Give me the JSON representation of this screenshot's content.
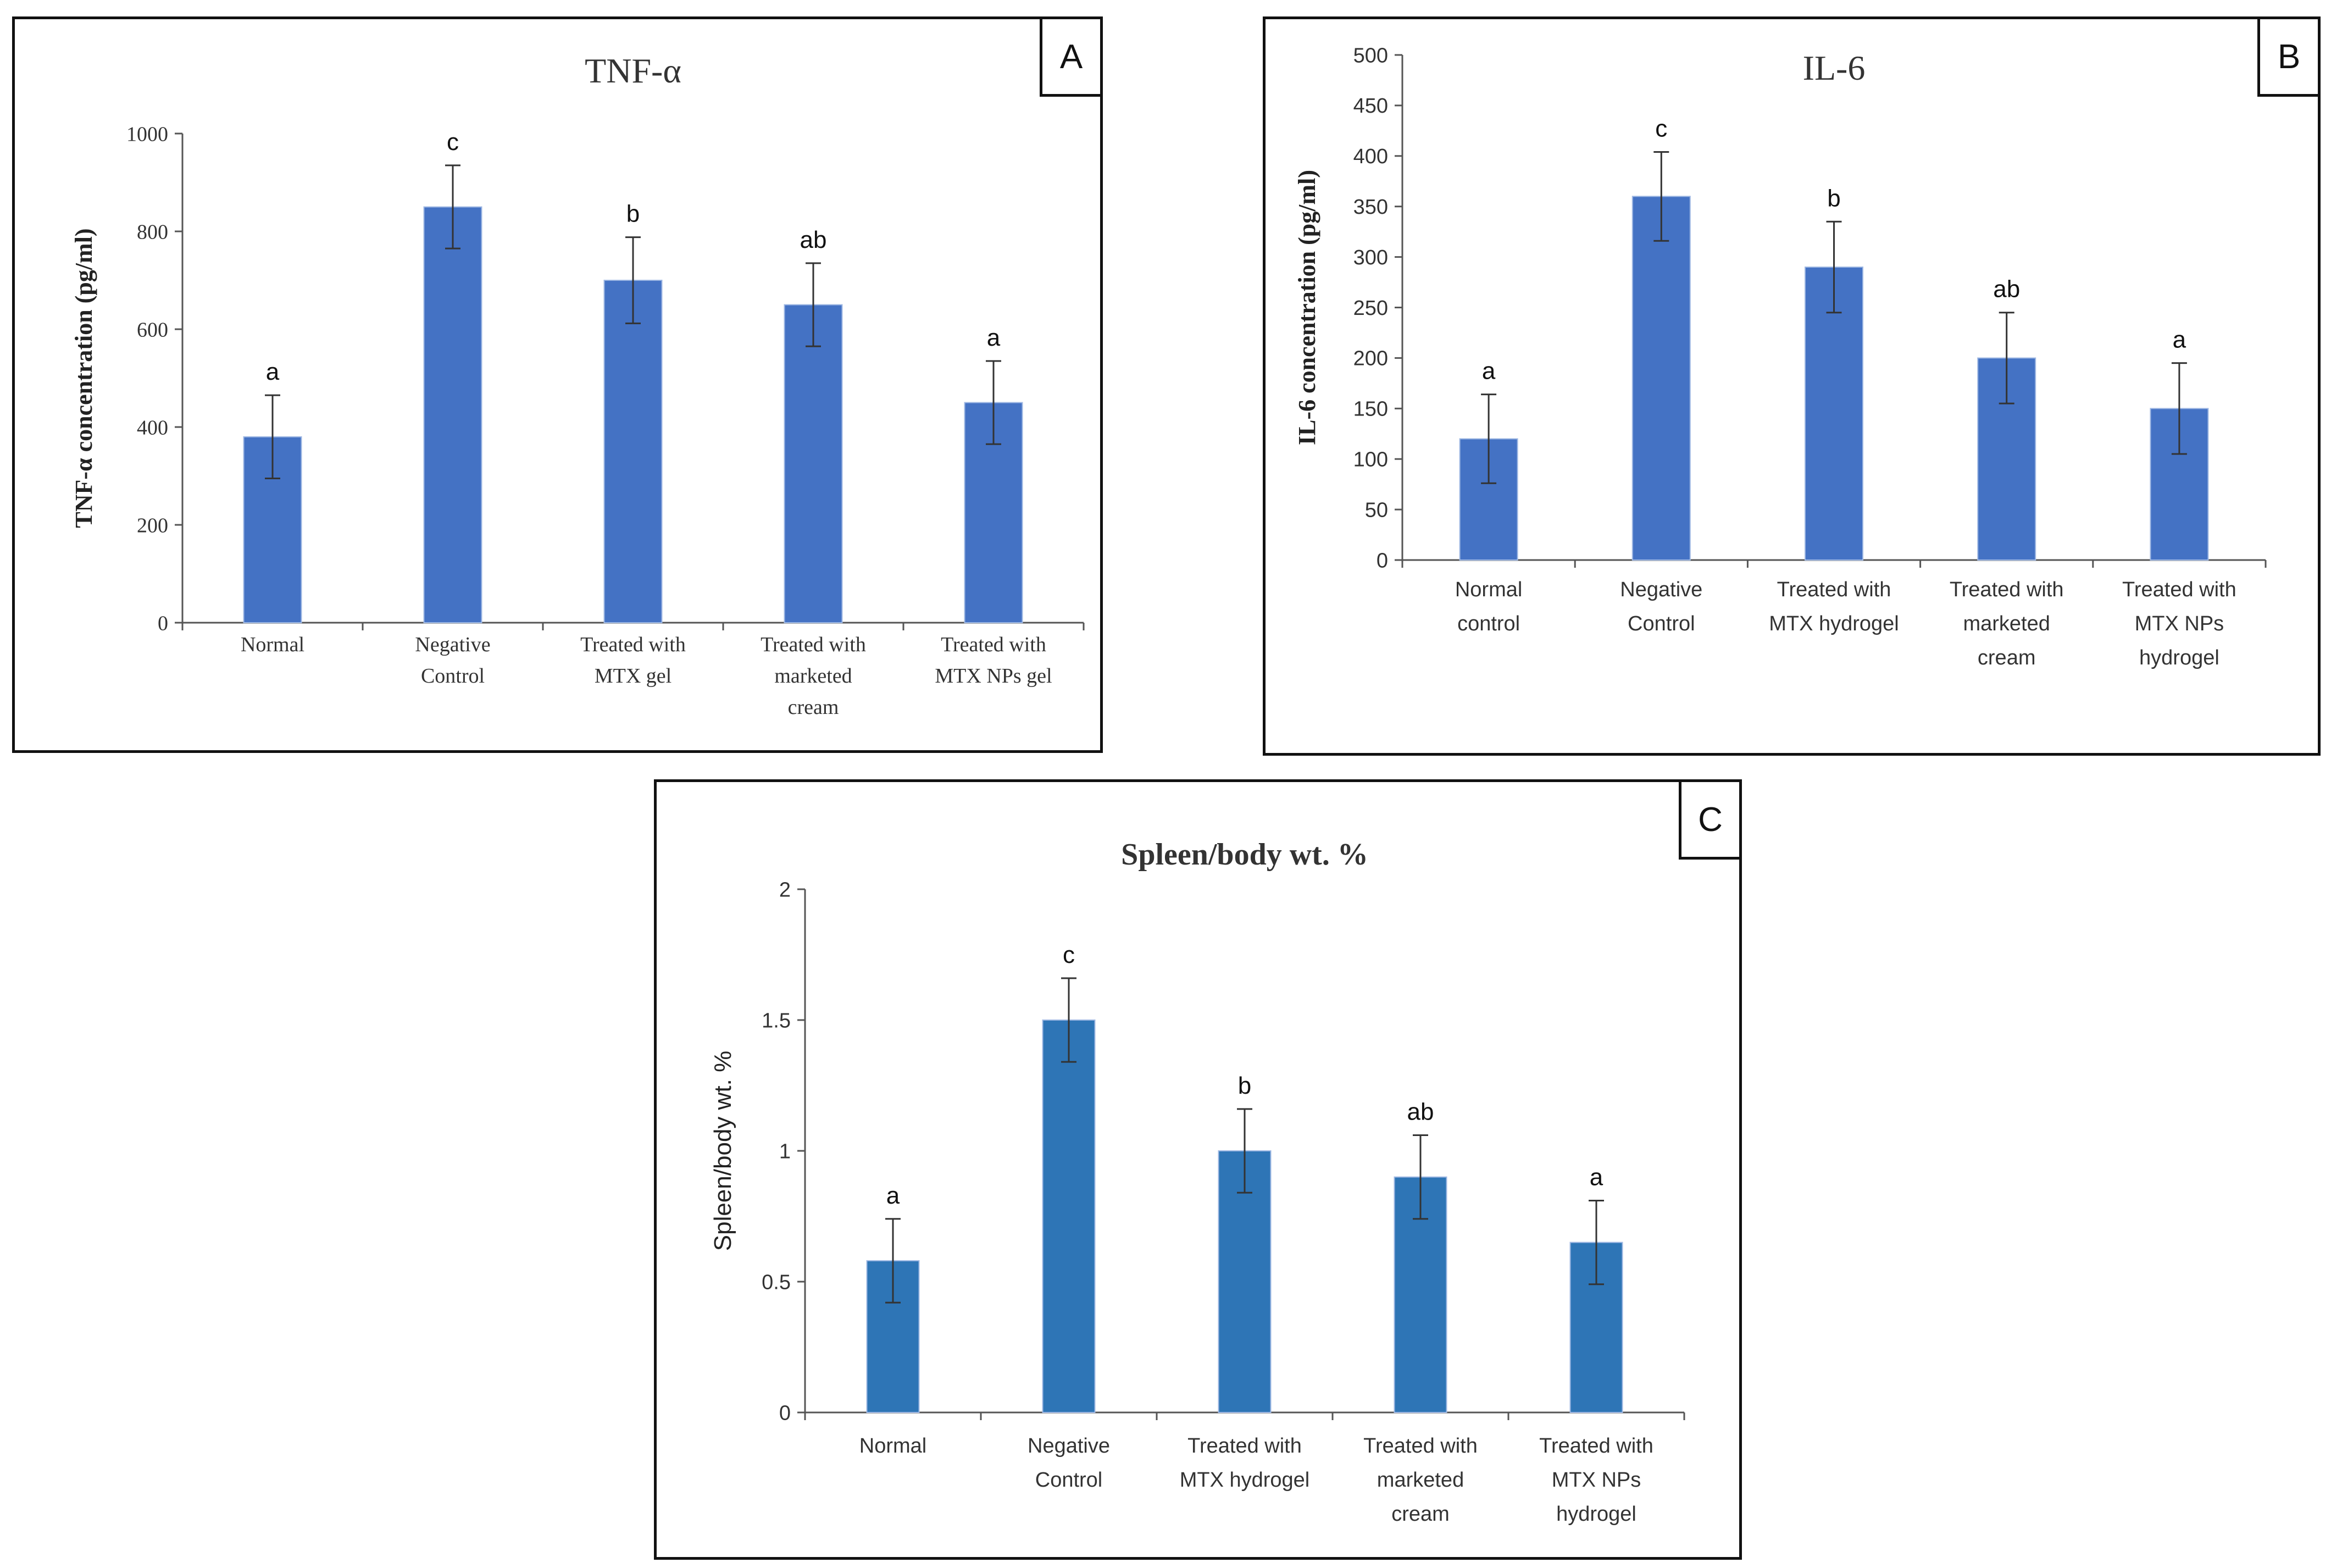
{
  "panels": [
    {
      "letter": "A"
    },
    {
      "letter": "B"
    },
    {
      "letter": "C"
    }
  ],
  "chart_data": [
    {
      "type": "bar",
      "title": "TNF-α",
      "ylabel": "TNF-α  concentration (pg/ml)",
      "xlabel": "",
      "ylim": [
        0,
        1000
      ],
      "yticks": [
        0,
        200,
        400,
        600,
        800,
        1000
      ],
      "categories": [
        "Normal",
        "Negative Control",
        "Treated with MTX gel",
        "Treated with marketed cream",
        "Treated with MTX NPs gel"
      ],
      "category_lines": [
        [
          "Normal"
        ],
        [
          "Negative",
          "Control"
        ],
        [
          "Treated with",
          "MTX gel"
        ],
        [
          "Treated with",
          "marketed",
          "cream"
        ],
        [
          "Treated with",
          "MTX NPs gel"
        ]
      ],
      "values": [
        380,
        850,
        700,
        650,
        450
      ],
      "errors": [
        85,
        85,
        88,
        85,
        85
      ],
      "labels": [
        "a",
        "c",
        "b",
        "ab",
        "a"
      ],
      "bar_color": "#4472c4",
      "grid": false,
      "legend": "none"
    },
    {
      "type": "bar",
      "title": "IL-6",
      "ylabel": "IL-6 concentration (pg/ml)",
      "xlabel": "",
      "ylim": [
        0,
        500
      ],
      "yticks": [
        0,
        50,
        100,
        150,
        200,
        250,
        300,
        350,
        400,
        450,
        500
      ],
      "categories": [
        "Normal control",
        "Negative Control",
        "Treated with MTX hydrogel",
        "Treated with marketed cream",
        "Treated with MTX NPs hydrogel"
      ],
      "category_lines": [
        [
          "Normal",
          "control"
        ],
        [
          "Negative",
          "Control"
        ],
        [
          "Treated with",
          "MTX hydrogel"
        ],
        [
          "Treated with",
          "marketed",
          "cream"
        ],
        [
          "Treated with",
          "MTX NPs",
          "hydrogel"
        ]
      ],
      "values": [
        120,
        360,
        290,
        200,
        150
      ],
      "errors": [
        44,
        44,
        45,
        45,
        45
      ],
      "labels": [
        "a",
        "c",
        "b",
        "ab",
        "a"
      ],
      "bar_color": "#4472c4",
      "grid": false,
      "legend": "none"
    },
    {
      "type": "bar",
      "title": "Spleen/body wt. %",
      "ylabel": "Spleen/body wt. %",
      "xlabel": "",
      "ylim": [
        0,
        2
      ],
      "yticks": [
        0,
        0.5,
        1,
        1.5,
        2
      ],
      "categories": [
        "Normal",
        "Negative Control",
        "Treated with MTX hydrogel",
        "Treated with marketed cream",
        "Treated with MTX NPs hydrogel"
      ],
      "category_lines": [
        [
          "Normal"
        ],
        [
          "Negative",
          "Control"
        ],
        [
          "Treated with",
          "MTX hydrogel"
        ],
        [
          "Treated with",
          "marketed",
          "cream"
        ],
        [
          "Treated with",
          "MTX NPs",
          "hydrogel"
        ]
      ],
      "values": [
        0.58,
        1.5,
        1.0,
        0.9,
        0.65
      ],
      "errors": [
        0.16,
        0.16,
        0.16,
        0.16,
        0.16
      ],
      "labels": [
        "a",
        "c",
        "b",
        "ab",
        "a"
      ],
      "bar_color": "#2e75b6",
      "grid": false,
      "legend": "none"
    }
  ]
}
